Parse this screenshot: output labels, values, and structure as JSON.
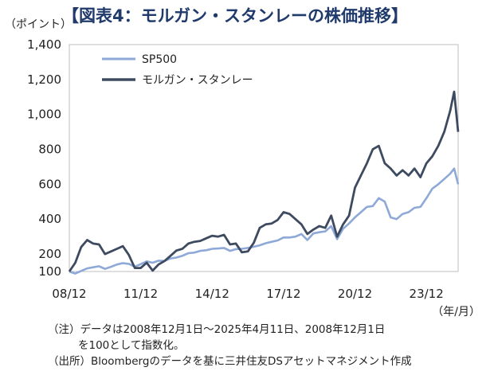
{
  "title": "【図表4：モルガン・スタンレーの株価推移】",
  "y_unit": "（ポイント）",
  "x_unit": "（年/月）",
  "notes": [
    "（注）データは2008年12月1日～2025年4月11日、2008年12月1日",
    "を100として指数化。",
    "（出所）Bloombergのデータを基に三井住友DSアセットマネジメント作成"
  ],
  "chart_data": {
    "type": "line",
    "xlim": [
      "2008-12",
      "2025-04"
    ],
    "ylim": [
      100,
      1400
    ],
    "yticks": [
      100,
      200,
      400,
      600,
      800,
      1000,
      1200,
      1400
    ],
    "ytick_labels": [
      "100",
      "200",
      "400",
      "600",
      "800",
      "1,000",
      "1,200",
      "1,400"
    ],
    "xticks": [
      "2008-12",
      "2011-12",
      "2014-12",
      "2017-12",
      "2020-12",
      "2023-12"
    ],
    "xtick_labels": [
      "08/12",
      "11/12",
      "14/12",
      "17/12",
      "20/12",
      "23/12"
    ],
    "grid": false,
    "legend": "top-left",
    "series": [
      {
        "name": "SP500",
        "color": "#8ea9d8",
        "x": [
          "2008-12",
          "2009-03",
          "2009-06",
          "2009-09",
          "2009-12",
          "2010-03",
          "2010-06",
          "2010-09",
          "2010-12",
          "2011-03",
          "2011-06",
          "2011-09",
          "2011-12",
          "2012-03",
          "2012-06",
          "2012-09",
          "2012-12",
          "2013-03",
          "2013-06",
          "2013-09",
          "2013-12",
          "2014-03",
          "2014-06",
          "2014-09",
          "2014-12",
          "2015-03",
          "2015-06",
          "2015-09",
          "2015-12",
          "2016-03",
          "2016-06",
          "2016-09",
          "2016-12",
          "2017-03",
          "2017-06",
          "2017-09",
          "2017-12",
          "2018-03",
          "2018-06",
          "2018-09",
          "2018-12",
          "2019-03",
          "2019-06",
          "2019-09",
          "2019-12",
          "2020-03",
          "2020-06",
          "2020-09",
          "2020-12",
          "2021-03",
          "2021-06",
          "2021-09",
          "2021-12",
          "2022-03",
          "2022-06",
          "2022-09",
          "2022-12",
          "2023-03",
          "2023-06",
          "2023-09",
          "2023-12",
          "2024-03",
          "2024-06",
          "2024-09",
          "2024-12",
          "2025-02",
          "2025-04"
        ],
        "values": [
          100,
          88,
          103,
          118,
          124,
          130,
          115,
          127,
          140,
          148,
          144,
          128,
          142,
          158,
          150,
          162,
          160,
          175,
          180,
          190,
          205,
          208,
          218,
          222,
          230,
          232,
          235,
          218,
          228,
          230,
          235,
          242,
          250,
          262,
          270,
          278,
          295,
          295,
          300,
          315,
          280,
          318,
          325,
          330,
          360,
          285,
          345,
          375,
          410,
          440,
          470,
          475,
          520,
          500,
          410,
          400,
          430,
          440,
          465,
          470,
          520,
          575,
          600,
          630,
          660,
          690,
          600
        ]
      },
      {
        "name": "モルガン・スタンレー",
        "color": "#3d4a5f",
        "x": [
          "2008-12",
          "2009-03",
          "2009-06",
          "2009-09",
          "2009-12",
          "2010-03",
          "2010-06",
          "2010-09",
          "2010-12",
          "2011-03",
          "2011-06",
          "2011-09",
          "2011-12",
          "2012-03",
          "2012-06",
          "2012-09",
          "2012-12",
          "2013-03",
          "2013-06",
          "2013-09",
          "2013-12",
          "2014-03",
          "2014-06",
          "2014-09",
          "2014-12",
          "2015-03",
          "2015-06",
          "2015-09",
          "2015-12",
          "2016-03",
          "2016-06",
          "2016-09",
          "2016-12",
          "2017-03",
          "2017-06",
          "2017-09",
          "2017-12",
          "2018-03",
          "2018-06",
          "2018-09",
          "2018-12",
          "2019-03",
          "2019-06",
          "2019-09",
          "2019-12",
          "2020-03",
          "2020-06",
          "2020-09",
          "2020-12",
          "2021-03",
          "2021-06",
          "2021-09",
          "2021-12",
          "2022-03",
          "2022-06",
          "2022-09",
          "2022-12",
          "2023-03",
          "2023-06",
          "2023-09",
          "2023-12",
          "2024-03",
          "2024-06",
          "2024-09",
          "2024-12",
          "2025-02",
          "2025-04"
        ],
        "values": [
          100,
          150,
          240,
          280,
          260,
          255,
          200,
          215,
          230,
          245,
          195,
          120,
          120,
          150,
          105,
          140,
          160,
          190,
          220,
          230,
          260,
          270,
          275,
          290,
          305,
          300,
          310,
          255,
          260,
          210,
          215,
          265,
          350,
          370,
          375,
          395,
          440,
          430,
          400,
          370,
          315,
          340,
          360,
          350,
          420,
          300,
          370,
          420,
          580,
          650,
          720,
          800,
          820,
          720,
          690,
          650,
          680,
          650,
          690,
          640,
          720,
          760,
          820,
          900,
          1020,
          1130,
          900
        ]
      }
    ]
  }
}
